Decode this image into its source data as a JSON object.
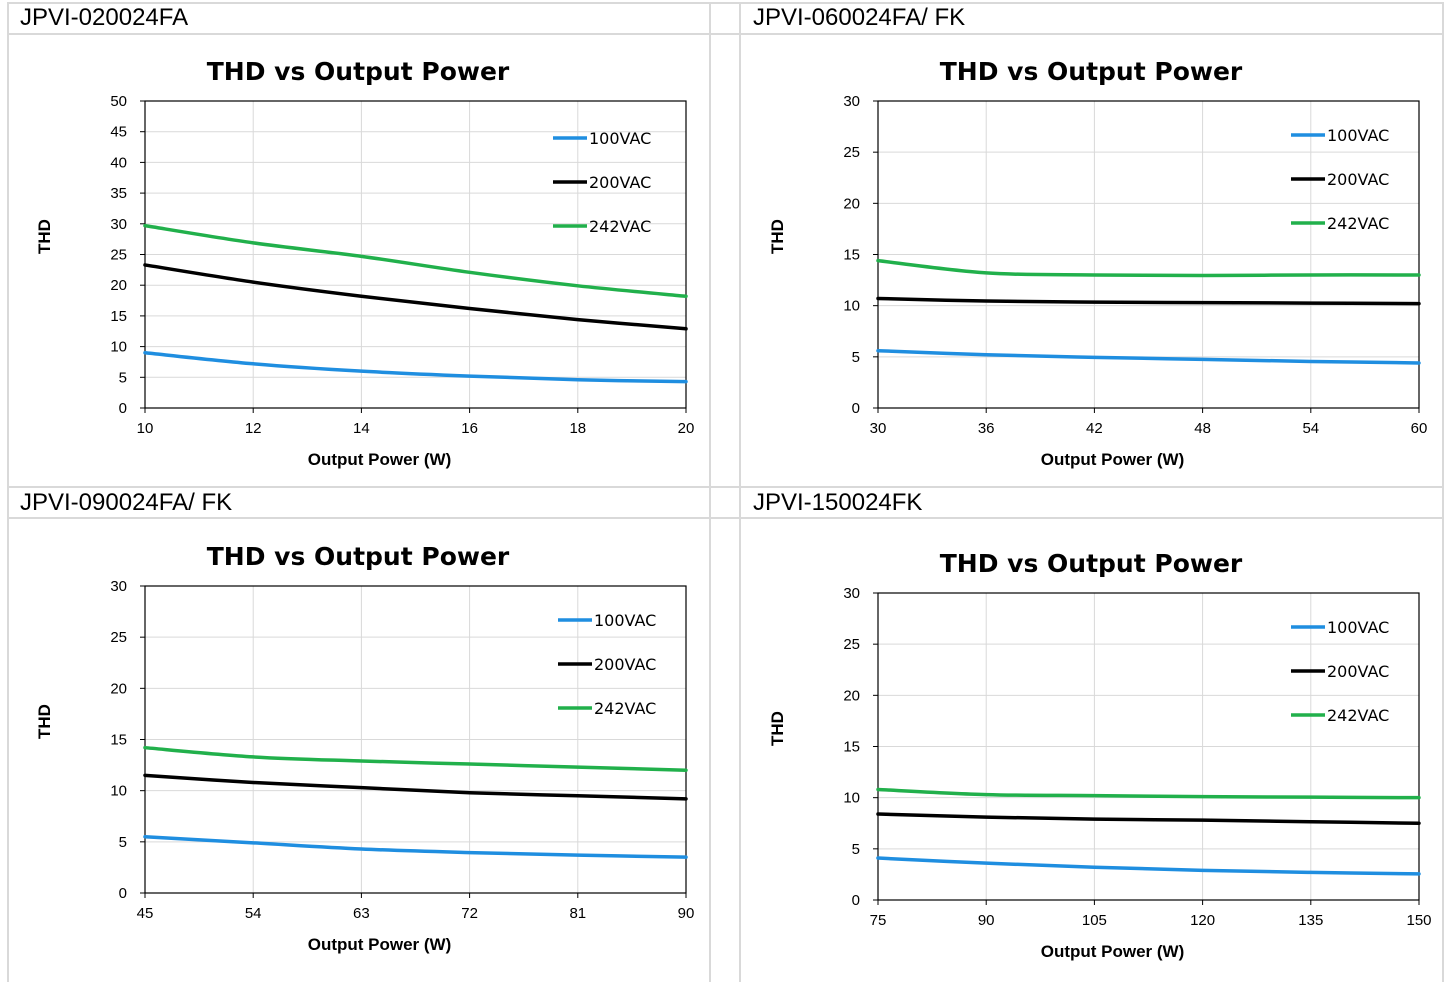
{
  "colors": {
    "100VAC": "#1f8ee0",
    "200VAC": "#000000",
    "242VAC": "#21b04b",
    "grid": "#d9d9d9"
  },
  "panels": [
    {
      "model": "JPVI-020024FA"
    },
    {
      "model": "JPVI-060024FA/ FK"
    },
    {
      "model": "JPVI-090024FA/ FK"
    },
    {
      "model": "JPVI-150024FK"
    }
  ],
  "chart_data": [
    {
      "type": "line",
      "title": "THD vs Output Power",
      "xlabel": "Output Power (W)",
      "ylabel": "THD",
      "xlim": [
        10,
        20
      ],
      "ylim": [
        0,
        50
      ],
      "xticks": [
        10,
        12,
        14,
        16,
        18,
        20
      ],
      "yticks": [
        0,
        5,
        10,
        15,
        20,
        25,
        30,
        35,
        40,
        45,
        50
      ],
      "grid": true,
      "legend": "top-right",
      "series": [
        {
          "name": "100VAC",
          "x": [
            10,
            12,
            14,
            16,
            18,
            20
          ],
          "y": [
            9.0,
            7.2,
            6.0,
            5.2,
            4.6,
            4.3
          ]
        },
        {
          "name": "200VAC",
          "x": [
            10,
            12,
            14,
            16,
            18,
            20
          ],
          "y": [
            23.3,
            20.5,
            18.2,
            16.2,
            14.4,
            12.9
          ]
        },
        {
          "name": "242VAC",
          "x": [
            10,
            12,
            14,
            16,
            18,
            20
          ],
          "y": [
            29.7,
            26.9,
            24.7,
            22.1,
            19.9,
            18.2
          ]
        }
      ]
    },
    {
      "type": "line",
      "title": "THD vs Output Power",
      "xlabel": "Output Power (W)",
      "ylabel": "THD",
      "xlim": [
        30,
        60
      ],
      "ylim": [
        0,
        30
      ],
      "xticks": [
        30,
        36,
        42,
        48,
        54,
        60
      ],
      "yticks": [
        0,
        5,
        10,
        15,
        20,
        25,
        30
      ],
      "grid": true,
      "legend": "top-right",
      "series": [
        {
          "name": "100VAC",
          "x": [
            30,
            36,
            42,
            48,
            54,
            60
          ],
          "y": [
            5.6,
            5.2,
            4.95,
            4.75,
            4.55,
            4.4
          ]
        },
        {
          "name": "200VAC",
          "x": [
            30,
            36,
            42,
            48,
            54,
            60
          ],
          "y": [
            10.7,
            10.45,
            10.35,
            10.3,
            10.25,
            10.2
          ]
        },
        {
          "name": "242VAC",
          "x": [
            30,
            36,
            42,
            48,
            54,
            60
          ],
          "y": [
            14.4,
            13.2,
            13.0,
            12.95,
            13.0,
            13.0
          ]
        }
      ]
    },
    {
      "type": "line",
      "title": "THD vs Output Power",
      "xlabel": "Output Power (W)",
      "ylabel": "THD",
      "xlim": [
        45,
        90
      ],
      "ylim": [
        0,
        30
      ],
      "xticks": [
        45,
        54,
        63,
        72,
        81,
        90
      ],
      "yticks": [
        0,
        5,
        10,
        15,
        20,
        25,
        30
      ],
      "grid": true,
      "legend": "top-right",
      "series": [
        {
          "name": "100VAC",
          "x": [
            45,
            54,
            63,
            72,
            81,
            90
          ],
          "y": [
            5.5,
            4.9,
            4.3,
            3.95,
            3.7,
            3.5
          ]
        },
        {
          "name": "200VAC",
          "x": [
            45,
            54,
            63,
            72,
            81,
            90
          ],
          "y": [
            11.5,
            10.8,
            10.3,
            9.8,
            9.5,
            9.2
          ]
        },
        {
          "name": "242VAC",
          "x": [
            45,
            54,
            63,
            72,
            81,
            90
          ],
          "y": [
            14.2,
            13.3,
            12.9,
            12.6,
            12.3,
            12.0
          ]
        }
      ]
    },
    {
      "type": "line",
      "title": "THD vs Output Power",
      "xlabel": "Output Power (W)",
      "ylabel": "THD",
      "xlim": [
        75,
        150
      ],
      "ylim": [
        0,
        30
      ],
      "xticks": [
        75,
        90,
        105,
        120,
        135,
        150
      ],
      "yticks": [
        0,
        5,
        10,
        15,
        20,
        25,
        30
      ],
      "grid": true,
      "legend": "top-right",
      "series": [
        {
          "name": "100VAC",
          "x": [
            75,
            90,
            105,
            120,
            135,
            150
          ],
          "y": [
            4.1,
            3.6,
            3.2,
            2.9,
            2.7,
            2.55
          ]
        },
        {
          "name": "200VAC",
          "x": [
            75,
            90,
            105,
            120,
            135,
            150
          ],
          "y": [
            8.4,
            8.1,
            7.9,
            7.8,
            7.65,
            7.5
          ]
        },
        {
          "name": "242VAC",
          "x": [
            75,
            90,
            105,
            120,
            135,
            150
          ],
          "y": [
            10.8,
            10.3,
            10.2,
            10.1,
            10.05,
            10.0
          ]
        }
      ]
    }
  ]
}
